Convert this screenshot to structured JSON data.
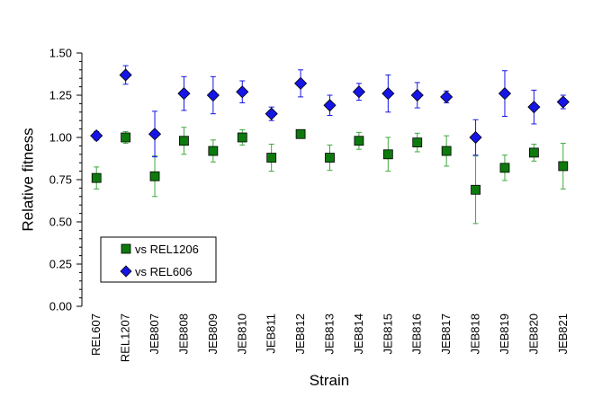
{
  "chart_data": {
    "type": "scatter",
    "xlabel": "Strain",
    "ylabel": "Relative fitness",
    "ylim": [
      0,
      1.5
    ],
    "yticks": [
      "0.00",
      "0.25",
      "0.50",
      "0.75",
      "1.00",
      "1.25",
      "1.50"
    ],
    "grid": false,
    "legend_position": "bottom-left",
    "categories": [
      "REL607",
      "REL1207",
      "JEB807",
      "JEB808",
      "JEB809",
      "JEB810",
      "JEB811",
      "JEB812",
      "JEB813",
      "JEB814",
      "JEB815",
      "JEB816",
      "JEB817",
      "JEB818",
      "JEB819",
      "JEB820",
      "JEB821"
    ],
    "series": [
      {
        "name": "vs REL1206",
        "marker": "square",
        "color": "#0e7a0e",
        "error_color": "#3fa83f",
        "values": [
          0.76,
          1.0,
          0.77,
          0.98,
          0.92,
          1.0,
          0.88,
          1.02,
          0.88,
          0.98,
          0.9,
          0.97,
          0.92,
          0.69,
          0.82,
          0.91,
          0.83
        ],
        "error": [
          0.065,
          0.035,
          0.12,
          0.08,
          0.065,
          0.045,
          0.08,
          0.02,
          0.075,
          0.05,
          0.1,
          0.055,
          0.09,
          0.2,
          0.075,
          0.05,
          0.135
        ]
      },
      {
        "name": "vs REL606",
        "marker": "diamond",
        "color": "#1515e6",
        "error_color": "#1515e6",
        "values": [
          1.01,
          1.37,
          1.02,
          1.26,
          1.25,
          1.27,
          1.14,
          1.32,
          1.19,
          1.27,
          1.26,
          1.25,
          1.24,
          1.0,
          1.26,
          1.18,
          1.21
        ],
        "error": [
          0.025,
          0.055,
          0.135,
          0.1,
          0.11,
          0.065,
          0.04,
          0.08,
          0.06,
          0.05,
          0.11,
          0.075,
          0.035,
          0.105,
          0.135,
          0.1,
          0.04
        ]
      }
    ]
  }
}
